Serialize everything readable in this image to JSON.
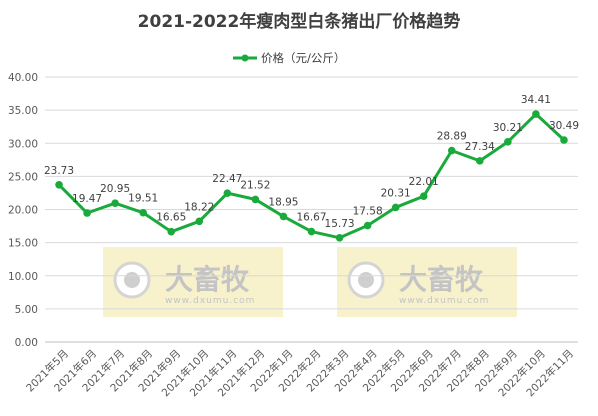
{
  "chart_data": {
    "type": "line",
    "title": "2021-2022年瘦肉型白条猪出厂价格趋势",
    "categories": [
      "2021年5月",
      "2021年6月",
      "2021年7月",
      "2021年8月",
      "2021年9月",
      "2021年10月",
      "2021年11月",
      "2021年12月",
      "2022年1月",
      "2022年2月",
      "2022年3月",
      "2022年4月",
      "2022年5月",
      "2022年6月",
      "2022年7月",
      "2022年8月",
      "2022年9月",
      "2022年10月",
      "2022年11月"
    ],
    "series": [
      {
        "name": "价格（元/公斤）",
        "values": [
          23.73,
          19.47,
          20.95,
          19.51,
          16.65,
          18.22,
          22.47,
          21.52,
          18.95,
          16.67,
          15.73,
          17.58,
          20.31,
          22.01,
          28.89,
          27.34,
          30.21,
          34.41,
          30.49
        ],
        "color": "#1aaa3c"
      }
    ],
    "ylim": [
      0,
      40
    ],
    "yticks": [
      "0.00",
      "5.00",
      "10.00",
      "15.00",
      "20.00",
      "25.00",
      "30.00",
      "35.00",
      "40.00"
    ],
    "grid": true,
    "legend_position": "top-center",
    "xlabel": "",
    "ylabel": "",
    "watermark": {
      "brand": "大畜牧",
      "url": "www.dxumu.com"
    }
  }
}
